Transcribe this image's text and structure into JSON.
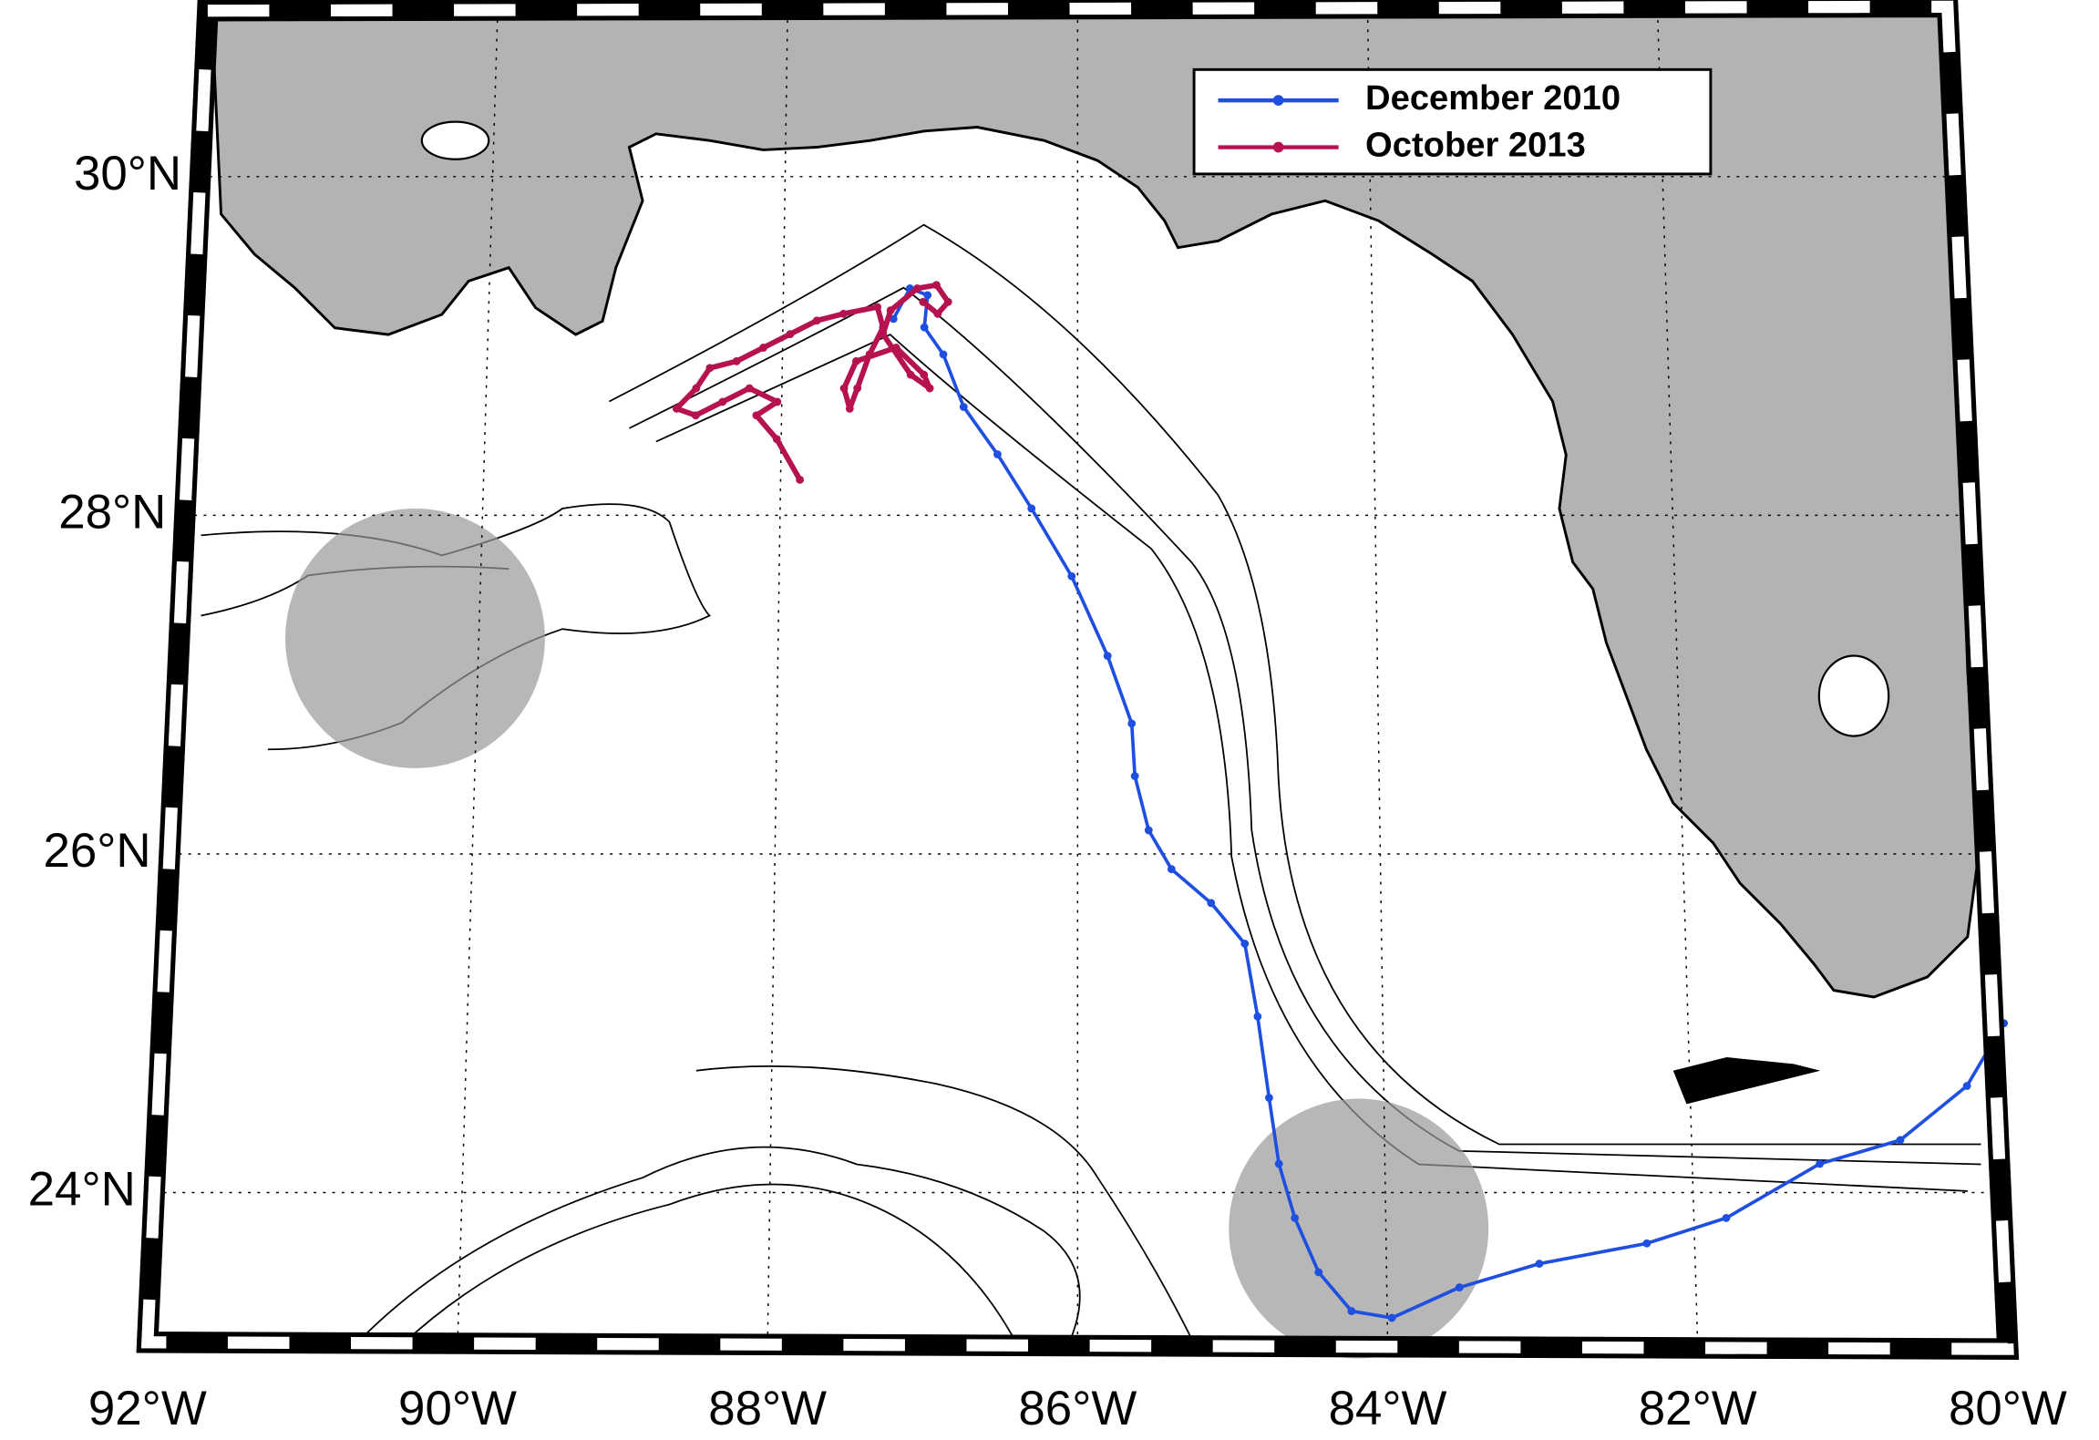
{
  "chart_data": {
    "type": "map",
    "xlim": [
      -92,
      -80
    ],
    "ylim": [
      23.1,
      30.98
    ],
    "xticks": [
      {
        "value": -92,
        "label": "92°W"
      },
      {
        "value": -90,
        "label": "90°W"
      },
      {
        "value": -88,
        "label": "88°W"
      },
      {
        "value": -86,
        "label": "86°W"
      },
      {
        "value": -84,
        "label": "84°W"
      },
      {
        "value": -82,
        "label": "82°W"
      },
      {
        "value": -80,
        "label": "80°W"
      }
    ],
    "yticks": [
      {
        "value": 30,
        "label": "30°N"
      },
      {
        "value": 28,
        "label": "28°N"
      },
      {
        "value": 26,
        "label": "26°N"
      },
      {
        "value": 24,
        "label": "24°N"
      }
    ],
    "grid": true,
    "series": [
      {
        "name": "December 2010",
        "color": "#1f4fe0",
        "x": [
          -87.25,
          -87.14,
          -87.02,
          -87.04,
          -86.91,
          -86.77,
          -86.54,
          -86.31,
          -86.04,
          -85.8,
          -85.64,
          -85.62,
          -85.53,
          -85.38,
          -85.12,
          -84.9,
          -84.82,
          -84.75,
          -84.69,
          -84.59,
          -84.44,
          -84.23,
          -83.97,
          -83.53,
          -83.01,
          -82.31,
          -81.79,
          -81.17,
          -80.64,
          -80.19,
          -79.93
        ],
        "values": [
          29.16,
          29.34,
          29.3,
          29.11,
          28.95,
          28.64,
          28.36,
          28.04,
          27.64,
          27.17,
          26.77,
          26.46,
          26.14,
          25.91,
          25.71,
          25.47,
          25.04,
          24.56,
          24.17,
          23.85,
          23.53,
          23.3,
          23.26,
          23.44,
          23.58,
          23.7,
          23.85,
          24.17,
          24.31,
          24.63,
          25.0
        ]
      },
      {
        "name": "October 2013",
        "color": "#b5124f",
        "x": [
          -87.87,
          -88.03,
          -88.17,
          -88.03,
          -88.22,
          -88.4,
          -88.58,
          -88.71,
          -88.58,
          -88.49,
          -88.31,
          -88.13,
          -87.95,
          -87.77,
          -87.59,
          -87.36,
          -87.32,
          -87.41,
          -87.49,
          -87.54,
          -87.58,
          -87.5,
          -87.23,
          -87.04,
          -87.0,
          -87.13,
          -87.32,
          -87.27,
          -87.09,
          -86.96,
          -86.88,
          -86.95,
          -87.05
        ],
        "values": [
          28.21,
          28.45,
          28.59,
          28.67,
          28.75,
          28.67,
          28.59,
          28.63,
          28.75,
          28.87,
          28.91,
          28.99,
          29.07,
          29.15,
          29.19,
          29.23,
          29.11,
          28.95,
          28.75,
          28.63,
          28.75,
          28.91,
          28.99,
          28.83,
          28.75,
          28.83,
          29.07,
          29.21,
          29.34,
          29.36,
          29.26,
          29.19,
          29.26
        ]
      }
    ]
  }
}
